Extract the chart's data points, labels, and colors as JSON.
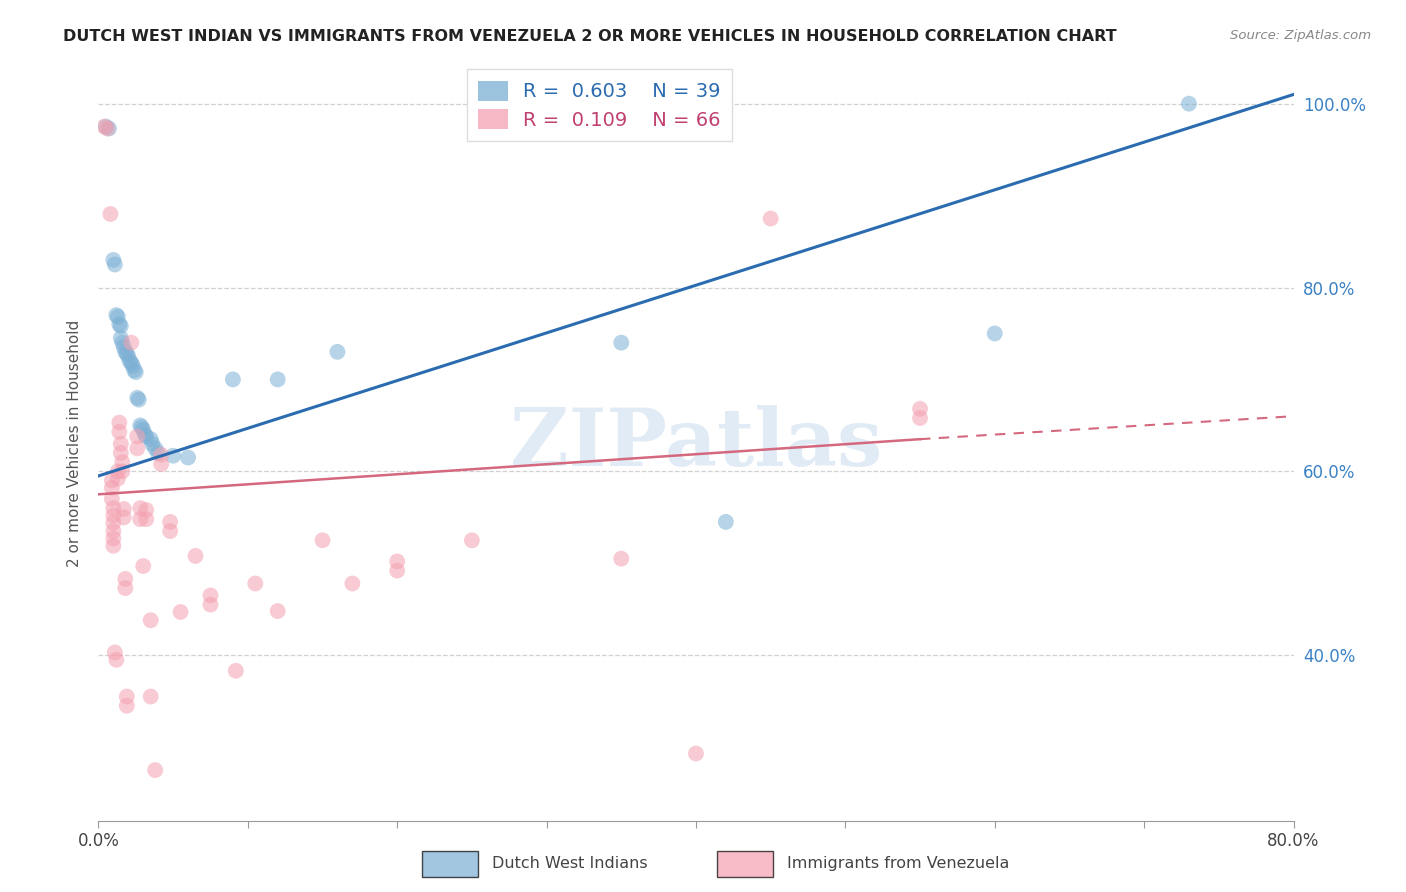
{
  "title": "DUTCH WEST INDIAN VS IMMIGRANTS FROM VENEZUELA 2 OR MORE VEHICLES IN HOUSEHOLD CORRELATION CHART",
  "source": "Source: ZipAtlas.com",
  "ylabel": "2 or more Vehicles in Household",
  "xlim": [
    0.0,
    0.8
  ],
  "ylim": [
    0.22,
    1.04
  ],
  "yticks": [
    0.4,
    0.6,
    0.8,
    1.0
  ],
  "ytick_labels": [
    "40.0%",
    "60.0%",
    "80.0%",
    "100.0%"
  ],
  "blue_R": "0.603",
  "blue_N": "39",
  "pink_R": "0.109",
  "pink_N": "66",
  "blue_line": {
    "x0": 0.0,
    "y0": 0.595,
    "x1": 0.8,
    "y1": 1.01
  },
  "pink_line_solid": {
    "x0": 0.0,
    "y0": 0.575,
    "x1": 0.55,
    "y1": 0.635
  },
  "pink_line_dash": {
    "x0": 0.55,
    "y0": 0.635,
    "x1": 0.8,
    "y1": 0.66
  },
  "blue_points": [
    [
      0.005,
      0.975
    ],
    [
      0.007,
      0.973
    ],
    [
      0.01,
      0.83
    ],
    [
      0.011,
      0.825
    ],
    [
      0.012,
      0.77
    ],
    [
      0.013,
      0.768
    ],
    [
      0.014,
      0.76
    ],
    [
      0.015,
      0.758
    ],
    [
      0.015,
      0.745
    ],
    [
      0.016,
      0.74
    ],
    [
      0.017,
      0.735
    ],
    [
      0.018,
      0.73
    ],
    [
      0.019,
      0.728
    ],
    [
      0.02,
      0.725
    ],
    [
      0.021,
      0.72
    ],
    [
      0.022,
      0.718
    ],
    [
      0.023,
      0.715
    ],
    [
      0.024,
      0.71
    ],
    [
      0.025,
      0.708
    ],
    [
      0.026,
      0.68
    ],
    [
      0.027,
      0.678
    ],
    [
      0.028,
      0.65
    ],
    [
      0.029,
      0.648
    ],
    [
      0.03,
      0.645
    ],
    [
      0.031,
      0.64
    ],
    [
      0.032,
      0.638
    ],
    [
      0.035,
      0.635
    ],
    [
      0.036,
      0.63
    ],
    [
      0.038,
      0.625
    ],
    [
      0.04,
      0.62
    ],
    [
      0.05,
      0.617
    ],
    [
      0.06,
      0.615
    ],
    [
      0.09,
      0.7
    ],
    [
      0.12,
      0.7
    ],
    [
      0.16,
      0.73
    ],
    [
      0.35,
      0.74
    ],
    [
      0.42,
      0.545
    ],
    [
      0.6,
      0.75
    ],
    [
      0.73,
      1.0
    ]
  ],
  "pink_points": [
    [
      0.004,
      0.975
    ],
    [
      0.006,
      0.973
    ],
    [
      0.008,
      0.88
    ],
    [
      0.009,
      0.59
    ],
    [
      0.009,
      0.582
    ],
    [
      0.009,
      0.57
    ],
    [
      0.01,
      0.56
    ],
    [
      0.01,
      0.552
    ],
    [
      0.01,
      0.544
    ],
    [
      0.01,
      0.535
    ],
    [
      0.01,
      0.527
    ],
    [
      0.01,
      0.519
    ],
    [
      0.011,
      0.403
    ],
    [
      0.012,
      0.395
    ],
    [
      0.013,
      0.6
    ],
    [
      0.013,
      0.592
    ],
    [
      0.014,
      0.653
    ],
    [
      0.014,
      0.643
    ],
    [
      0.015,
      0.63
    ],
    [
      0.015,
      0.62
    ],
    [
      0.016,
      0.61
    ],
    [
      0.016,
      0.6
    ],
    [
      0.017,
      0.559
    ],
    [
      0.017,
      0.55
    ],
    [
      0.018,
      0.483
    ],
    [
      0.018,
      0.473
    ],
    [
      0.019,
      0.355
    ],
    [
      0.019,
      0.345
    ],
    [
      0.022,
      0.74
    ],
    [
      0.026,
      0.638
    ],
    [
      0.026,
      0.625
    ],
    [
      0.028,
      0.56
    ],
    [
      0.028,
      0.548
    ],
    [
      0.03,
      0.497
    ],
    [
      0.032,
      0.558
    ],
    [
      0.032,
      0.548
    ],
    [
      0.035,
      0.438
    ],
    [
      0.035,
      0.355
    ],
    [
      0.038,
      0.275
    ],
    [
      0.042,
      0.618
    ],
    [
      0.042,
      0.608
    ],
    [
      0.048,
      0.545
    ],
    [
      0.048,
      0.535
    ],
    [
      0.055,
      0.447
    ],
    [
      0.065,
      0.508
    ],
    [
      0.075,
      0.465
    ],
    [
      0.075,
      0.455
    ],
    [
      0.092,
      0.383
    ],
    [
      0.105,
      0.478
    ],
    [
      0.12,
      0.448
    ],
    [
      0.15,
      0.525
    ],
    [
      0.17,
      0.478
    ],
    [
      0.2,
      0.502
    ],
    [
      0.2,
      0.492
    ],
    [
      0.25,
      0.525
    ],
    [
      0.35,
      0.505
    ],
    [
      0.4,
      0.293
    ],
    [
      0.45,
      0.875
    ],
    [
      0.55,
      0.668
    ],
    [
      0.55,
      0.658
    ]
  ],
  "blue_color": "#7BAFD4",
  "pink_color": "#F4A0B0",
  "blue_line_color": "#2B6CB0",
  "pink_line_color": "#D4687E",
  "watermark": "ZIPatlas",
  "background_color": "#FFFFFF"
}
